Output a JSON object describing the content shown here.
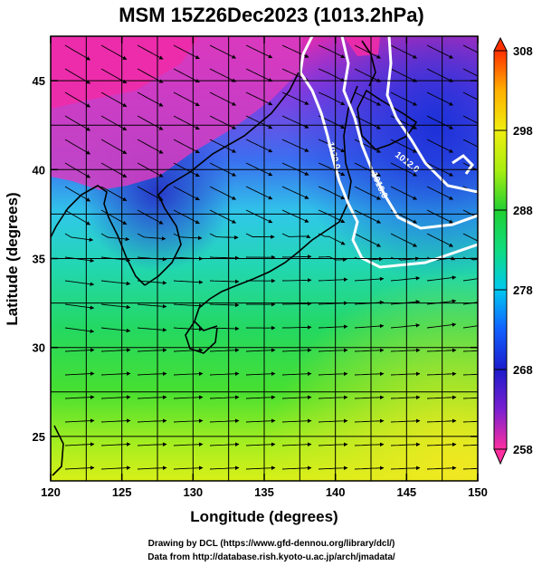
{
  "title": "MSM 15Z26Dec2023 (1013.2hPa)",
  "xlabel": "Longitude (degrees)",
  "ylabel": "Latitude  (degrees)",
  "map": {
    "lon_range": [
      120,
      150
    ],
    "lat_range": [
      22.5,
      47.5
    ],
    "lon_ticks": [
      "120",
      "125",
      "130",
      "135",
      "140",
      "145",
      "150"
    ],
    "lat_ticks": [
      "25",
      "30",
      "35",
      "40",
      "45"
    ],
    "grid": true
  },
  "colorbar": {
    "range": [
      258,
      308
    ],
    "ticks": [
      "258",
      "268",
      "278",
      "288",
      "298",
      "308"
    ],
    "colors": [
      "#ff2fa0",
      "#7a1fd0",
      "#1c1ccc",
      "#1060ff",
      "#00c8f0",
      "#10dc80",
      "#20d030",
      "#a8ee10",
      "#f0ee10",
      "#ffb000",
      "#ff3000"
    ]
  },
  "contour_labels": [
    "1020.0",
    "1016.0",
    "1012.0"
  ],
  "credits": {
    "line1": "Drawing by DCL (https://www.gfd-dennou.org/library/dcl/)",
    "line2": "Data from http://database.rish.kyoto-u.ac.jp/arch/jmadata/"
  }
}
